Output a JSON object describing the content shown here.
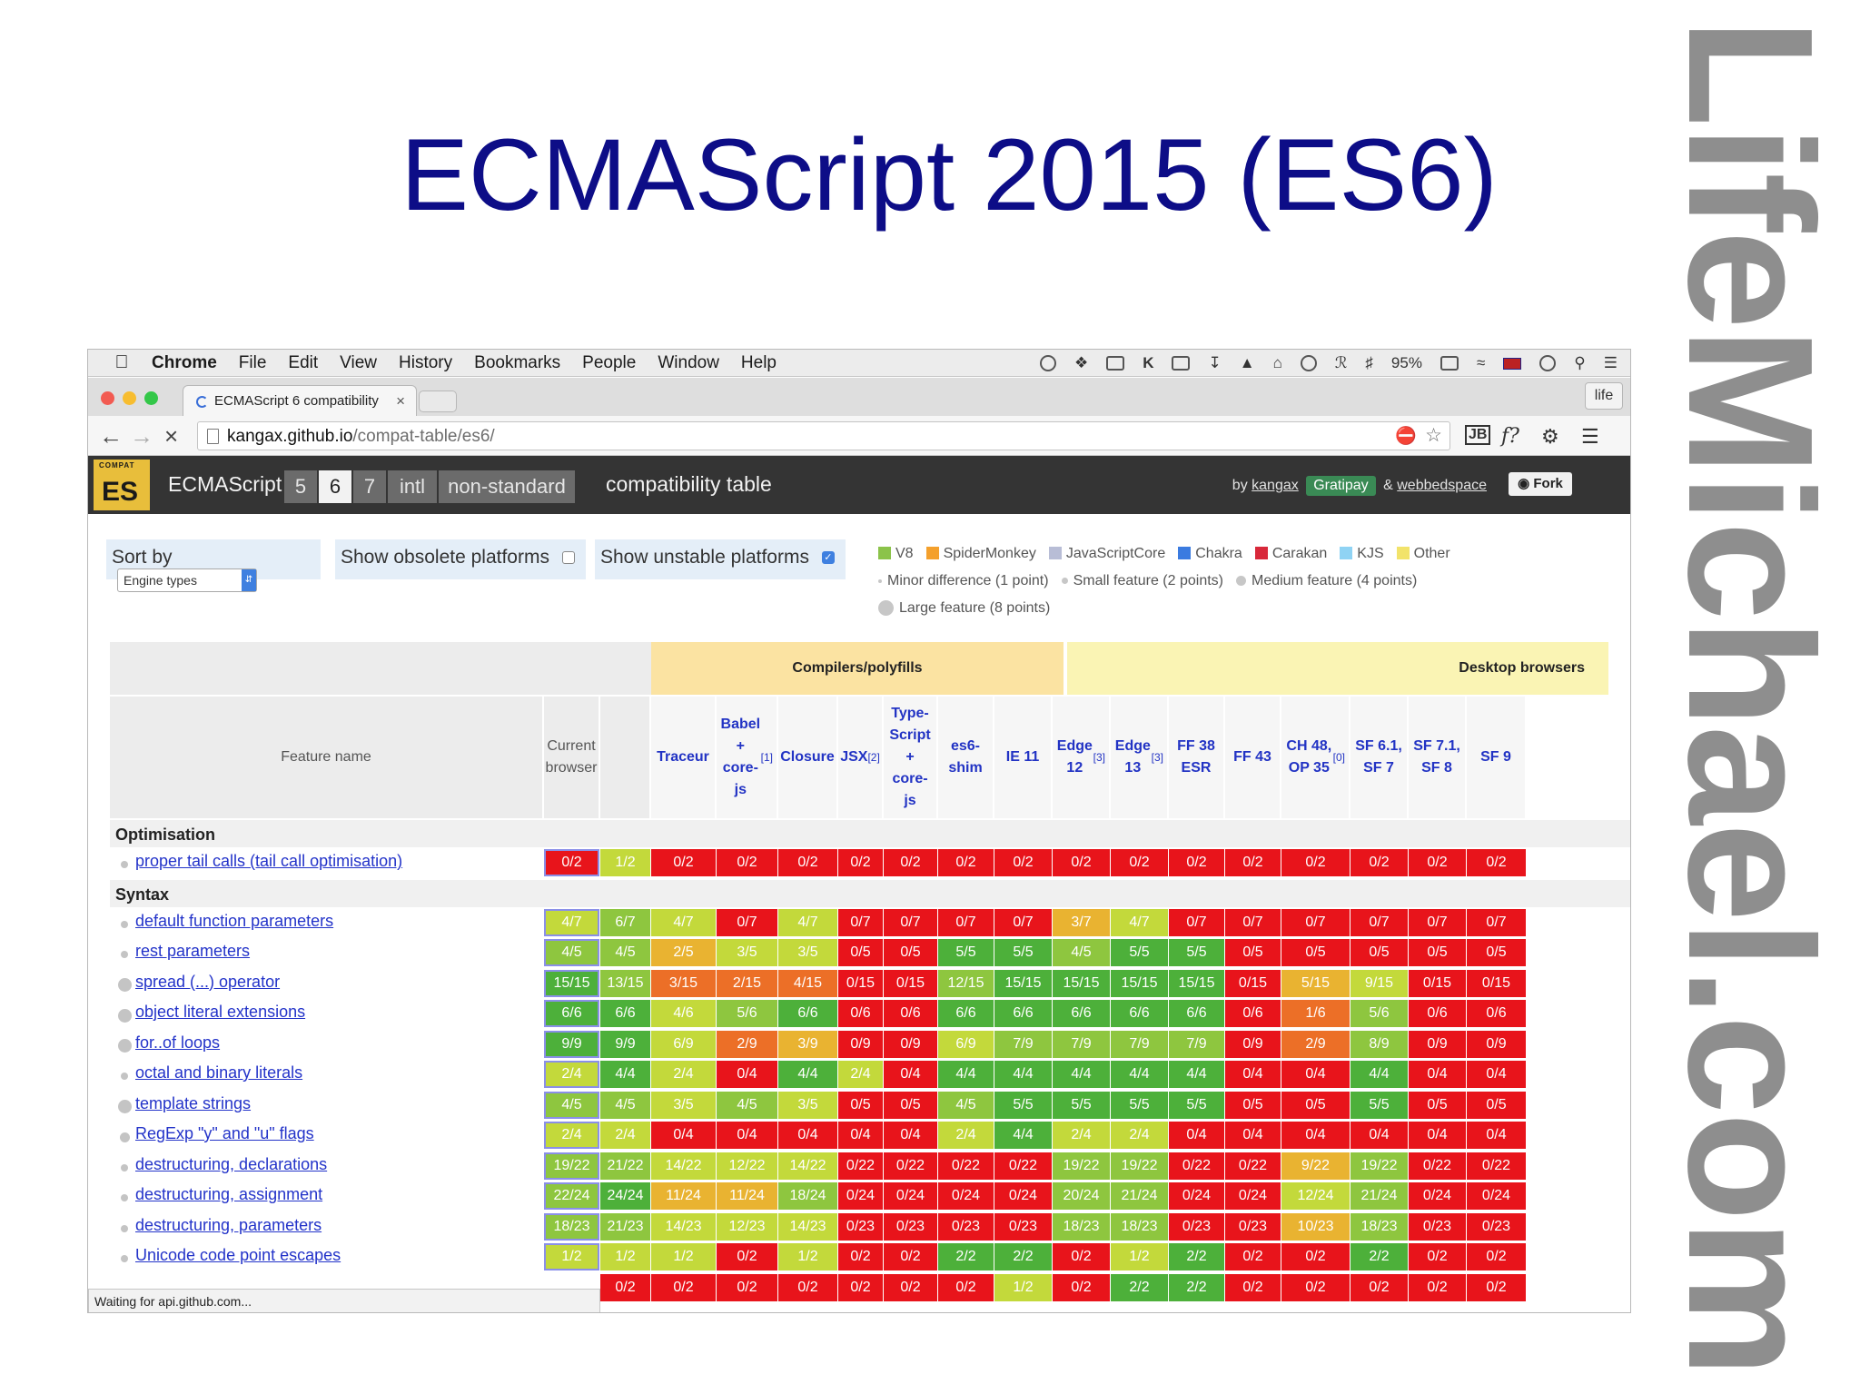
{
  "slide": {
    "title": "ECMAScript 2015 (ES6)",
    "watermark": "LifeMichael.com"
  },
  "menubar": {
    "app": "Chrome",
    "items": [
      "File",
      "Edit",
      "View",
      "History",
      "Bookmarks",
      "People",
      "Window",
      "Help"
    ],
    "battery": "95%"
  },
  "browser": {
    "tab_title": "ECMAScript 6 compatibility",
    "profile": "life",
    "url_host": "kangax.github.io",
    "url_path": "/compat-table/es6/",
    "status": "Waiting for api.github.com..."
  },
  "site": {
    "logo_small": "COMPAT",
    "logo_big": "ES",
    "brand": "ECMAScript",
    "version_tabs": [
      "5",
      "6",
      "7",
      "intl",
      "non-standard"
    ],
    "active_version": "6",
    "title": "compatibility table",
    "by": "by",
    "author": "kangax",
    "gratipay": "Gratipay",
    "amp": "&",
    "coauthor": "webbedspace",
    "fork": "Fork"
  },
  "controls": {
    "sort_label": "Sort by",
    "sort_value": "Engine types",
    "obsolete_label": "Show obsolete platforms",
    "unstable_label": "Show unstable platforms"
  },
  "legend": {
    "engines": [
      {
        "name": "V8",
        "color": "#8bc34a"
      },
      {
        "name": "SpiderMonkey",
        "color": "#f4a02c"
      },
      {
        "name": "JavaScriptCore",
        "color": "#b8bdd6"
      },
      {
        "name": "Chakra",
        "color": "#3b7be0"
      },
      {
        "name": "Carakan",
        "color": "#d8283a"
      },
      {
        "name": "KJS",
        "color": "#8fd3f4"
      },
      {
        "name": "Other",
        "color": "#f2e36a"
      }
    ],
    "sizes": [
      {
        "name": "Minor difference (1 point)",
        "dot": 4
      },
      {
        "name": "Small feature (2 points)",
        "dot": 7
      },
      {
        "name": "Medium feature (4 points)",
        "dot": 11
      },
      {
        "name": "Large feature (8 points)",
        "dot": 17
      }
    ]
  },
  "table": {
    "groups": [
      "Compilers/polyfills",
      "Desktop browsers"
    ],
    "feature_header": "Feature name",
    "columns": [
      {
        "label": "Current browser",
        "kind": "plain"
      },
      {
        "label": "",
        "kind": "plain"
      },
      {
        "label": "Traceur",
        "kind": "link"
      },
      {
        "label": "Babel + core-js",
        "note": "[1]",
        "kind": "link"
      },
      {
        "label": "Closure",
        "kind": "link"
      },
      {
        "label": "JSX",
        "note": "[2]",
        "kind": "link"
      },
      {
        "label": "Type-Script + core-js",
        "kind": "link"
      },
      {
        "label": "es6-shim",
        "kind": "link"
      },
      {
        "label": "IE 11",
        "kind": "link"
      },
      {
        "label": "Edge 12",
        "note": "[3]",
        "kind": "link"
      },
      {
        "label": "Edge 13",
        "note": "[3]",
        "kind": "link"
      },
      {
        "label": "FF 38 ESR",
        "kind": "link"
      },
      {
        "label": "FF 43",
        "kind": "link"
      },
      {
        "label": "CH 48, OP 35",
        "note": "[0]",
        "kind": "link"
      },
      {
        "label": "SF 6.1, SF 7",
        "kind": "link"
      },
      {
        "label": "SF 7.1, SF 8",
        "kind": "link"
      },
      {
        "label": "SF 9",
        "kind": "link"
      }
    ],
    "sections": [
      {
        "name": "Optimisation",
        "rows": [
          {
            "feature": "proper tail calls (tail call optimisation)",
            "size": 1,
            "cells": [
              "0/2",
              "1/2",
              "0/2",
              "0/2",
              "0/2",
              "0/2",
              "0/2",
              "0/2",
              "0/2",
              "0/2",
              "0/2",
              "0/2",
              "0/2",
              "0/2",
              "0/2",
              "0/2",
              "0/2"
            ]
          }
        ]
      },
      {
        "name": "Syntax",
        "rows": [
          {
            "feature": "default function parameters",
            "size": 1,
            "cells": [
              "4/7",
              "6/7",
              "4/7",
              "0/7",
              "4/7",
              "0/7",
              "0/7",
              "0/7",
              "0/7",
              "3/7",
              "4/7",
              "0/7",
              "0/7",
              "0/7",
              "0/7",
              "0/7",
              "0/7"
            ]
          },
          {
            "feature": "rest parameters",
            "size": 1,
            "cells": [
              "4/5",
              "4/5",
              "2/5",
              "3/5",
              "3/5",
              "0/5",
              "0/5",
              "5/5",
              "5/5",
              "4/5",
              "5/5",
              "5/5",
              "0/5",
              "0/5",
              "0/5",
              "0/5",
              "0/5"
            ]
          },
          {
            "feature": "spread (...) operator",
            "size": 3,
            "cells": [
              "15/15",
              "13/15",
              "3/15",
              "2/15",
              "4/15",
              "0/15",
              "0/15",
              "12/15",
              "15/15",
              "15/15",
              "15/15",
              "15/15",
              "0/15",
              "5/15",
              "9/15",
              "0/15",
              "0/15"
            ]
          },
          {
            "feature": "object literal extensions",
            "size": 3,
            "cells": [
              "6/6",
              "6/6",
              "4/6",
              "5/6",
              "6/6",
              "0/6",
              "0/6",
              "6/6",
              "6/6",
              "6/6",
              "6/6",
              "6/6",
              "0/6",
              "1/6",
              "5/6",
              "0/6",
              "0/6"
            ]
          },
          {
            "feature": "for..of loops",
            "size": 3,
            "cells": [
              "9/9",
              "9/9",
              "6/9",
              "2/9",
              "3/9",
              "0/9",
              "0/9",
              "6/9",
              "7/9",
              "7/9",
              "7/9",
              "7/9",
              "0/9",
              "2/9",
              "8/9",
              "0/9",
              "0/9"
            ]
          },
          {
            "feature": "octal and binary literals",
            "size": 1,
            "cells": [
              "2/4",
              "4/4",
              "2/4",
              "0/4",
              "4/4",
              "2/4",
              "0/4",
              "4/4",
              "4/4",
              "4/4",
              "4/4",
              "4/4",
              "0/4",
              "0/4",
              "4/4",
              "0/4",
              "0/4"
            ]
          },
          {
            "feature": "template strings",
            "size": 3,
            "cells": [
              "4/5",
              "4/5",
              "3/5",
              "4/5",
              "3/5",
              "0/5",
              "0/5",
              "4/5",
              "5/5",
              "5/5",
              "5/5",
              "5/5",
              "0/5",
              "0/5",
              "5/5",
              "0/5",
              "0/5"
            ]
          },
          {
            "feature": "RegExp \"y\" and \"u\" flags",
            "size": 2,
            "cells": [
              "2/4",
              "2/4",
              "0/4",
              "0/4",
              "0/4",
              "0/4",
              "0/4",
              "2/4",
              "4/4",
              "2/4",
              "2/4",
              "0/4",
              "0/4",
              "0/4",
              "0/4",
              "0/4",
              "0/4"
            ]
          },
          {
            "feature": "destructuring, declarations",
            "size": 1,
            "cells": [
              "19/22",
              "21/22",
              "14/22",
              "12/22",
              "14/22",
              "0/22",
              "0/22",
              "0/22",
              "0/22",
              "19/22",
              "19/22",
              "0/22",
              "0/22",
              "9/22",
              "19/22",
              "0/22",
              "0/22"
            ]
          },
          {
            "feature": "destructuring, assignment",
            "size": 1,
            "cells": [
              "22/24",
              "24/24",
              "11/24",
              "11/24",
              "18/24",
              "0/24",
              "0/24",
              "0/24",
              "0/24",
              "20/24",
              "21/24",
              "0/24",
              "0/24",
              "12/24",
              "21/24",
              "0/24",
              "0/24"
            ]
          },
          {
            "feature": "destructuring, parameters",
            "size": 1,
            "cells": [
              "18/23",
              "21/23",
              "14/23",
              "12/23",
              "14/23",
              "0/23",
              "0/23",
              "0/23",
              "0/23",
              "18/23",
              "18/23",
              "0/23",
              "0/23",
              "10/23",
              "18/23",
              "0/23",
              "0/23"
            ]
          },
          {
            "feature": "Unicode code point escapes",
            "size": 1,
            "cells": [
              "1/2",
              "1/2",
              "1/2",
              "0/2",
              "1/2",
              "0/2",
              "0/2",
              "2/2",
              "2/2",
              "0/2",
              "1/2",
              "2/2",
              "0/2",
              "0/2",
              "2/2",
              "0/2",
              "0/2"
            ]
          },
          {
            "feature": "",
            "size": 0,
            "cells": [
              "",
              "0/2",
              "0/2",
              "0/2",
              "0/2",
              "0/2",
              "0/2",
              "0/2",
              "1/2",
              "0/2",
              "2/2",
              "2/2",
              "0/2",
              "0/2",
              "0/2",
              "0/2",
              "0/2"
            ]
          }
        ]
      }
    ]
  }
}
